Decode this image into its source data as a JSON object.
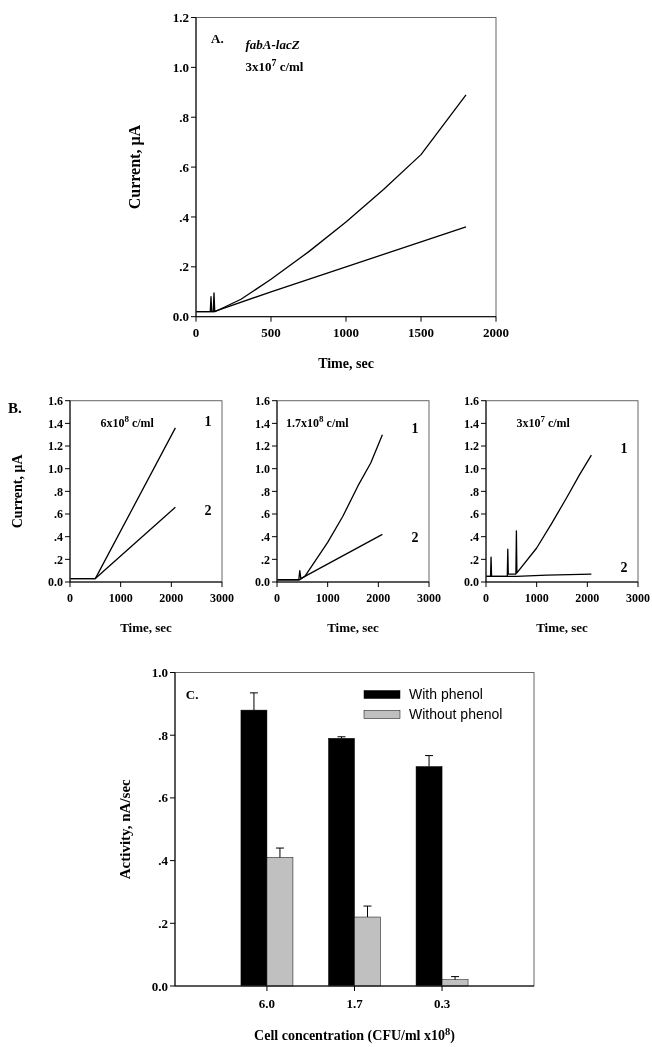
{
  "chart_data": [
    {
      "type": "line",
      "xlabel": "Time, sec",
      "ylabel": "Current, μA",
      "annotations": [
        "A.",
        "fabA-lacZ",
        "3x10$^{7}$ c/ml"
      ],
      "xlim": [
        0,
        2000
      ],
      "ylim": [
        0,
        1.2
      ],
      "xticks": [
        0,
        500,
        1000,
        1500,
        2000
      ],
      "yticks": [
        {
          "value": 0,
          "label": "0.0"
        },
        {
          "value": 0.2,
          "label": ".2"
        },
        {
          "value": 0.4,
          "label": ".4"
        },
        {
          "value": 0.6,
          "label": ".6"
        },
        {
          "value": 0.8,
          "label": ".8"
        },
        {
          "value": 1,
          "label": "1.0"
        },
        {
          "value": 1.2,
          "label": "1.2"
        }
      ],
      "grid": false,
      "legend": false,
      "marker": "none",
      "line_style": "solid",
      "series": [
        {
          "color": "#000000",
          "x": [
            0,
            95,
            100,
            105,
            115,
            120,
            125,
            300,
            500,
            750,
            1000,
            1250,
            1500,
            1800
          ],
          "values": [
            0.02,
            0.02,
            0.08,
            0.02,
            0.02,
            0.095,
            0.02,
            0.07,
            0.15,
            0.26,
            0.38,
            0.51,
            0.65,
            0.89
          ]
        },
        {
          "color": "#000000",
          "x": [
            0,
            120,
            500,
            1000,
            1500,
            1800
          ],
          "values": [
            0.02,
            0.02,
            0.1,
            0.2,
            0.3,
            0.36
          ]
        }
      ]
    },
    {
      "type": "line",
      "xlabel": "Time, sec",
      "ylabel": "Current, μA",
      "annotations": [
        "B.",
        "6x10$^{8}$ c/ml"
      ],
      "xlim": [
        0,
        3000
      ],
      "ylim": [
        0,
        1.6
      ],
      "xticks": [
        0,
        1000,
        2000,
        3000
      ],
      "yticks": [
        {
          "value": 0,
          "label": "0.0"
        },
        {
          "value": 0.2,
          "label": ".2"
        },
        {
          "value": 0.4,
          "label": ".4"
        },
        {
          "value": 0.6,
          "label": ".6"
        },
        {
          "value": 0.8,
          "label": ".8"
        },
        {
          "value": 1,
          "label": "1.0"
        },
        {
          "value": 1.2,
          "label": "1.2"
        },
        {
          "value": 1.4,
          "label": "1.4"
        },
        {
          "value": 1.6,
          "label": "1.6"
        }
      ],
      "grid": false,
      "legend": false,
      "marker": "none",
      "line_style": "solid",
      "series": [
        {
          "name": "1",
          "color": "#000000",
          "x": [
            0,
            500,
            2080
          ],
          "values": [
            0.03,
            0.03,
            1.36
          ]
        },
        {
          "name": "2",
          "color": "#000000",
          "x": [
            0,
            500,
            2080
          ],
          "values": [
            0.03,
            0.03,
            0.66
          ]
        }
      ]
    },
    {
      "type": "line",
      "xlabel": "Time, sec",
      "annotations": [
        "1.7x10$^{8}$ c/ml"
      ],
      "xlim": [
        0,
        3000
      ],
      "ylim": [
        0,
        1.6
      ],
      "xticks": [
        0,
        1000,
        2000,
        3000
      ],
      "yticks": [
        {
          "value": 0,
          "label": "0.0"
        },
        {
          "value": 0.2,
          "label": ".2"
        },
        {
          "value": 0.4,
          "label": ".4"
        },
        {
          "value": 0.6,
          "label": ".6"
        },
        {
          "value": 0.8,
          "label": ".8"
        },
        {
          "value": 1,
          "label": "1.0"
        },
        {
          "value": 1.2,
          "label": "1.2"
        },
        {
          "value": 1.4,
          "label": "1.4"
        },
        {
          "value": 1.6,
          "label": "1.6"
        }
      ],
      "grid": false,
      "legend": false,
      "marker": "none",
      "line_style": "solid",
      "series": [
        {
          "name": "1",
          "color": "#000000",
          "x": [
            0,
            430,
            450,
            470,
            550,
            1000,
            1300,
            1600,
            1850,
            2080
          ],
          "values": [
            0.02,
            0.02,
            0.1,
            0.03,
            0.05,
            0.35,
            0.58,
            0.85,
            1.05,
            1.3
          ]
        },
        {
          "name": "2",
          "color": "#000000",
          "x": [
            0,
            450,
            550,
            2080
          ],
          "values": [
            0.02,
            0.02,
            0.05,
            0.42
          ]
        }
      ]
    },
    {
      "type": "line",
      "xlabel": "Time, sec",
      "annotations": [
        "3x10$^{7}$ c/ml"
      ],
      "xlim": [
        0,
        3000
      ],
      "ylim": [
        0,
        1.6
      ],
      "xticks": [
        0,
        1000,
        2000,
        3000
      ],
      "yticks": [
        {
          "value": 0,
          "label": "0.0"
        },
        {
          "value": 0.2,
          "label": ".2"
        },
        {
          "value": 0.4,
          "label": ".4"
        },
        {
          "value": 0.6,
          "label": ".6"
        },
        {
          "value": 0.8,
          "label": ".8"
        },
        {
          "value": 1,
          "label": "1.0"
        },
        {
          "value": 1.2,
          "label": "1.2"
        },
        {
          "value": 1.4,
          "label": "1.4"
        },
        {
          "value": 1.6,
          "label": "1.6"
        }
      ],
      "grid": false,
      "legend": false,
      "marker": "none",
      "line_style": "solid",
      "series": [
        {
          "name": "1",
          "color": "#000000",
          "x": [
            0,
            90,
            100,
            110,
            420,
            430,
            440,
            590,
            600,
            610,
            1000,
            1300,
            1600,
            1850,
            2080
          ],
          "values": [
            0.05,
            0.05,
            0.22,
            0.05,
            0.05,
            0.29,
            0.07,
            0.07,
            0.45,
            0.08,
            0.3,
            0.52,
            0.75,
            0.95,
            1.12
          ]
        },
        {
          "name": "2",
          "color": "#000000",
          "x": [
            0,
            600,
            1200,
            2080
          ],
          "values": [
            0.05,
            0.05,
            0.06,
            0.07
          ]
        }
      ]
    },
    {
      "type": "bar",
      "xlabel": "Cell concentration (CFU/ml x10$^{8}$)",
      "ylabel": "Activity, nA/sec",
      "annotations": [
        "C."
      ],
      "categories": [
        "6.0",
        "1.7",
        "0.3"
      ],
      "ylim": [
        0,
        1
      ],
      "yticks": [
        {
          "value": 0,
          "label": "0.0"
        },
        {
          "value": 0.2,
          "label": ".2"
        },
        {
          "value": 0.4,
          "label": ".4"
        },
        {
          "value": 0.6,
          "label": ".6"
        },
        {
          "value": 0.8,
          "label": ".8"
        },
        {
          "value": 1,
          "label": "1.0"
        }
      ],
      "grid": false,
      "legend": "top right",
      "series": [
        {
          "name": "With phenol",
          "color": "#000000",
          "values": [
            0.88,
            0.79,
            0.7
          ],
          "errors": [
            0.055,
            0.005,
            0.035
          ]
        },
        {
          "name": "Without phenol",
          "color": "#c0c0c0",
          "values": [
            0.41,
            0.22,
            0.02
          ],
          "errors": [
            0.03,
            0.035,
            0.01
          ]
        }
      ]
    }
  ]
}
